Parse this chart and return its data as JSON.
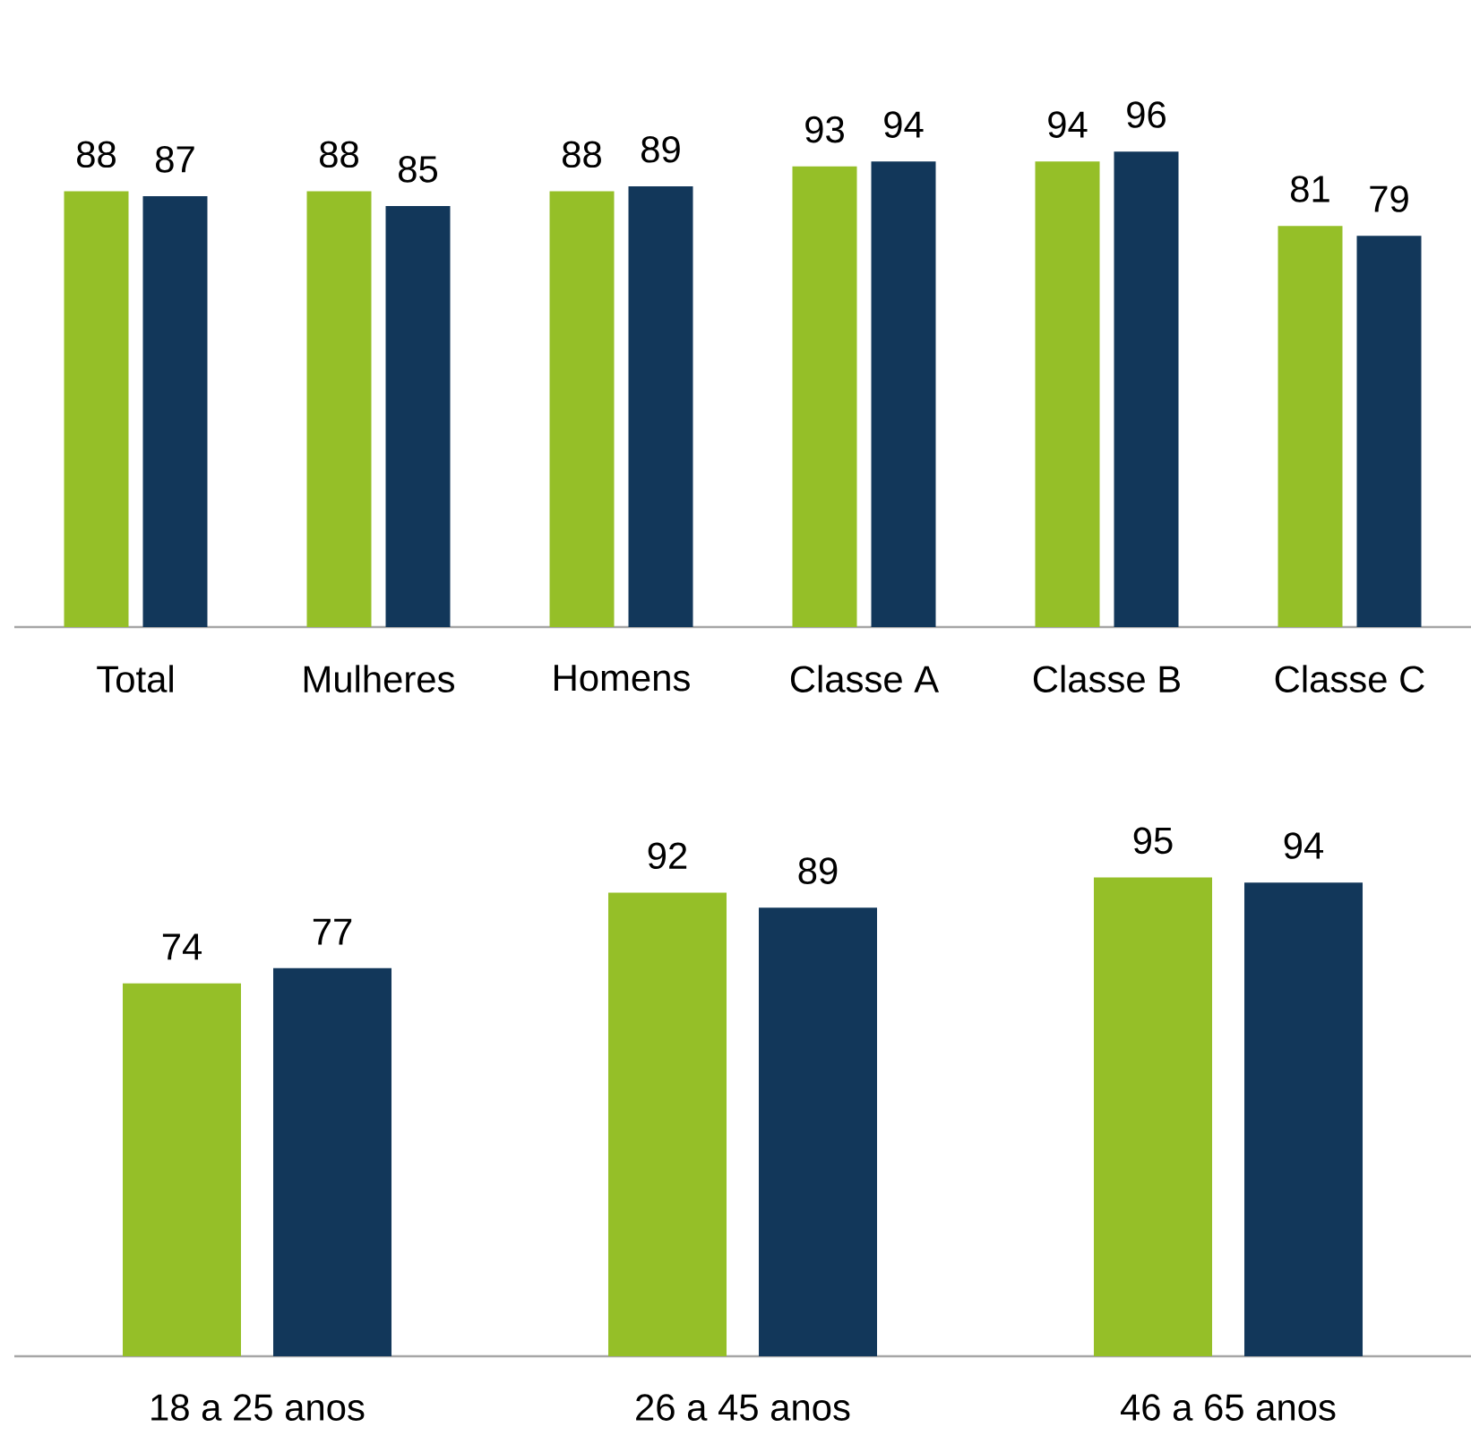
{
  "chart_data": [
    {
      "type": "bar",
      "categories": [
        "Total",
        "Mulheres",
        "Homens",
        "Classe A",
        "Classe B",
        "Classe C"
      ],
      "series": [
        {
          "color": "#95bf28",
          "values": [
            88,
            88,
            88,
            93,
            94,
            81
          ]
        },
        {
          "color": "#12375a",
          "values": [
            87,
            85,
            89,
            94,
            96,
            79
          ]
        }
      ],
      "data_labels": true,
      "tick_labels": "x"
    },
    {
      "type": "bar",
      "categories": [
        "18 a 25 anos",
        "26 a 45 anos",
        "46 a 65 anos"
      ],
      "series": [
        {
          "color": "#95bf28",
          "values": [
            74,
            92,
            95
          ]
        },
        {
          "color": "#12375a",
          "values": [
            77,
            89,
            94
          ]
        }
      ],
      "data_labels": true,
      "tick_labels": "x"
    }
  ]
}
